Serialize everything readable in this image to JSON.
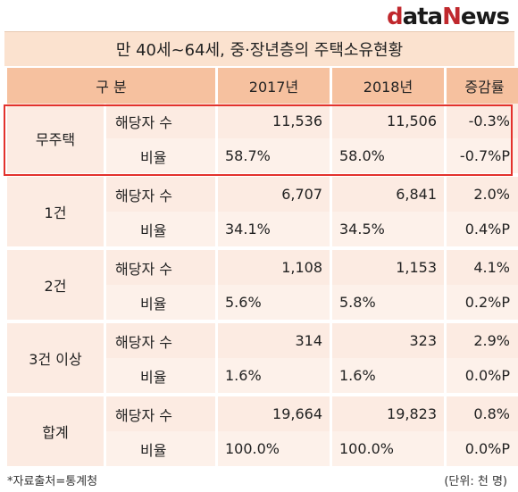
{
  "logo": {
    "part1": "d",
    "part2": "ata",
    "part3": "N",
    "part4": "ews"
  },
  "title": "만 40세~64세, 중·장년층의 주택소유현황",
  "header": {
    "category": "구  분",
    "y2017": "2017년",
    "y2018": "2018년",
    "change": "증감률"
  },
  "groups": [
    {
      "name": "무주택",
      "count_label": "해당자 수",
      "count_2017": "11,536",
      "count_2018": "11,506",
      "count_change": "-0.3%",
      "ratio_label": "비율",
      "ratio_2017": "58.7%",
      "ratio_2018": "58.0%",
      "ratio_change": "-0.7%P"
    },
    {
      "name": "1건",
      "count_label": "해당자 수",
      "count_2017": "6,707",
      "count_2018": "6,841",
      "count_change": "2.0%",
      "ratio_label": "비율",
      "ratio_2017": "34.1%",
      "ratio_2018": "34.5%",
      "ratio_change": "0.4%P"
    },
    {
      "name": "2건",
      "count_label": "해당자 수",
      "count_2017": "1,108",
      "count_2018": "1,153",
      "count_change": "4.1%",
      "ratio_label": "비율",
      "ratio_2017": "5.6%",
      "ratio_2018": "5.8%",
      "ratio_change": "0.2%P"
    },
    {
      "name": "3건 이상",
      "count_label": "해당자 수",
      "count_2017": "314",
      "count_2018": "323",
      "count_change": "2.9%",
      "ratio_label": "비율",
      "ratio_2017": "1.6%",
      "ratio_2018": "1.6%",
      "ratio_change": "0.0%P"
    },
    {
      "name": "합계",
      "count_label": "해당자 수",
      "count_2017": "19,664",
      "count_2018": "19,823",
      "count_change": "0.8%",
      "ratio_label": "비율",
      "ratio_2017": "100.0%",
      "ratio_2018": "100.0%",
      "ratio_change": "0.0%P"
    }
  ],
  "footer": {
    "source": "*자료출처=통계청",
    "unit": "(단위: 천 명)"
  },
  "colors": {
    "header": "#f6c19f",
    "title_bg": "#fbe2cf",
    "cell": "#fcebe2",
    "highlight": "#e3322c",
    "brand": "#c0282d"
  }
}
